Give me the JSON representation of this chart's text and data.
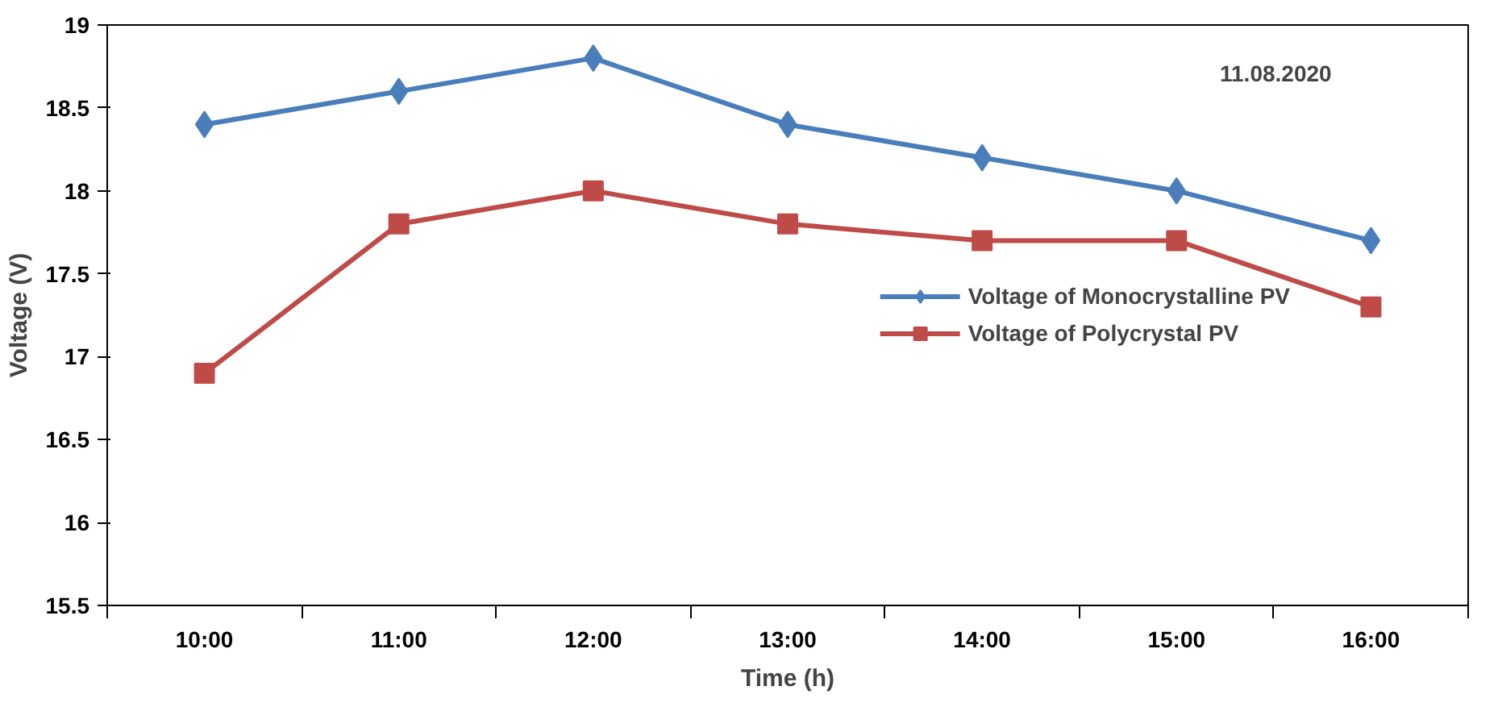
{
  "chart_data": {
    "type": "line",
    "xlabel": "Time (h)",
    "ylabel": "Voltage (V)",
    "categories": [
      "10:00",
      "11:00",
      "12:00",
      "13:00",
      "14:00",
      "15:00",
      "16:00"
    ],
    "series": [
      {
        "name": "Voltage of Monocrystalline PV",
        "color": "#4a7ebb",
        "marker": "diamond",
        "values": [
          18.4,
          18.6,
          18.8,
          18.4,
          18.2,
          18.0,
          17.7
        ]
      },
      {
        "name": "Voltage of Polycrystal PV",
        "color": "#be4b48",
        "marker": "square",
        "values": [
          16.9,
          17.8,
          18.0,
          17.8,
          17.7,
          17.7,
          17.3
        ]
      }
    ],
    "ylim": [
      15.5,
      19
    ],
    "yticks": [
      15.5,
      16,
      16.5,
      17,
      17.5,
      18,
      18.5,
      19
    ],
    "annotations": [
      "11.08.2020"
    ],
    "grid": false,
    "legend": "right",
    "line_style": "solid"
  }
}
